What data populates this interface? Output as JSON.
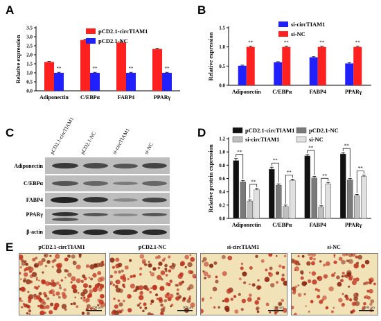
{
  "panels": {
    "a": "A",
    "b": "B",
    "c": "C",
    "d": "D",
    "e": "E"
  },
  "colors": {
    "red": "#ff2020",
    "blue": "#2020ff",
    "black": "#111111",
    "dark_gray": "#7a7a7a",
    "light_gray": "#bfbfbf",
    "lightest_gray": "#e0e0e0"
  },
  "chart_data": [
    {
      "type": "bar",
      "panel": "A",
      "categories": [
        "Adiponectin",
        "C/EBPα",
        "FABP4",
        "PPARγ"
      ],
      "ylabel": "Relative expression",
      "ylim": [
        0,
        3.5
      ],
      "yticks": [
        "0.0",
        "0.5",
        "1.0",
        "1.5",
        "2.0",
        "2.5",
        "3.0",
        "3.5"
      ],
      "series": [
        {
          "name": "pCD2.1-circTIAM1",
          "color": "#ff2020",
          "values": [
            1.6,
            2.82,
            2.68,
            2.32
          ],
          "errors": [
            0.03,
            0.04,
            0.03,
            0.05
          ]
        },
        {
          "name": "pCD2.1-NC",
          "color": "#2020ff",
          "values": [
            1.0,
            1.0,
            1.0,
            1.0
          ],
          "errors": [
            0.03,
            0.03,
            0.03,
            0.03
          ]
        }
      ],
      "significance": [
        "**",
        "**",
        "**",
        "**"
      ],
      "legend": "top-right"
    },
    {
      "type": "bar",
      "panel": "B",
      "categories": [
        "Adiponectin",
        "C/EBPα",
        "FABP4",
        "PPARγ"
      ],
      "ylabel": "Relative expression",
      "ylim": [
        0,
        1.5
      ],
      "yticks": [
        "0.0",
        "0.5",
        "1.0",
        "1.5"
      ],
      "series": [
        {
          "name": "si-circTIAM1",
          "color": "#2020ff",
          "values": [
            0.51,
            0.6,
            0.73,
            0.57
          ],
          "errors": [
            0.015,
            0.015,
            0.015,
            0.015
          ]
        },
        {
          "name": "si-NC",
          "color": "#ff2020",
          "values": [
            1.0,
            1.0,
            1.0,
            1.0
          ],
          "errors": [
            0.02,
            0.02,
            0.02,
            0.02
          ]
        }
      ],
      "significance": [
        "**",
        "**",
        "**",
        "**"
      ],
      "legend": "top-right"
    },
    {
      "type": "bar",
      "panel": "D",
      "categories": [
        "Adiponectin",
        "C/EBPα",
        "FABP4",
        "PPARγ"
      ],
      "ylabel": "Relative protrin expression",
      "ylim": [
        0,
        1.2
      ],
      "yticks": [
        "0.0",
        "0.2",
        "0.4",
        "0.6",
        "0.8",
        "1.0",
        "1.2"
      ],
      "series": [
        {
          "name": "pCD2.1-circTIAM1",
          "color": "#111111",
          "values": [
            0.87,
            0.74,
            0.94,
            0.97
          ],
          "errors": [
            0.03,
            0.03,
            0.02,
            0.02
          ]
        },
        {
          "name": "pCD2.1-NC",
          "color": "#7a7a7a",
          "values": [
            0.55,
            0.5,
            0.61,
            0.58
          ],
          "errors": [
            0.02,
            0.02,
            0.02,
            0.02
          ]
        },
        {
          "name": "si-circTIAM1",
          "color": "#bfbfbf",
          "values": [
            0.26,
            0.18,
            0.17,
            0.34
          ],
          "errors": [
            0.02,
            0.02,
            0.02,
            0.02
          ]
        },
        {
          "name": "si-NC",
          "color": "#e0e0e0",
          "values": [
            0.43,
            0.57,
            0.52,
            0.63
          ],
          "errors": [
            0.02,
            0.02,
            0.02,
            0.02
          ]
        }
      ],
      "significance": [
        "**",
        "**",
        "**",
        "**"
      ],
      "legend": "top"
    }
  ],
  "western_blot": {
    "lanes": [
      "pCD2.1-circTIAM1",
      "pCD2.1-NC",
      "si-circTIAM1",
      "si-NC"
    ],
    "proteins": [
      "Adiponectin",
      "C/EBPα",
      "FABP4",
      "PPARγ",
      "β-actin"
    ]
  },
  "micrographs": {
    "titles": [
      "pCD2.1-circTIAM1",
      "pCD2.1-NC",
      "si-circTIAM1",
      "si-NC"
    ],
    "scale_label": "100 μm"
  }
}
